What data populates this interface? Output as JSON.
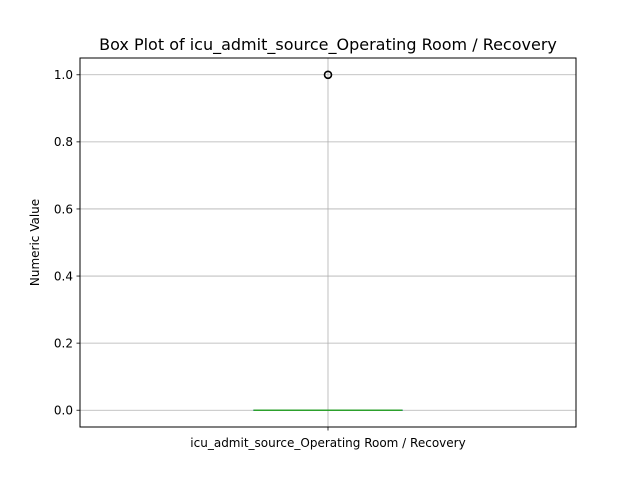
{
  "chart_data": {
    "type": "box",
    "title": "Box Plot of icu_admit_source_Operating Room / Recovery",
    "ylabel": "Numeric Value",
    "xlabel": "",
    "categories": [
      "icu_admit_source_Operating Room / Recovery"
    ],
    "ylim": [
      -0.05,
      1.05
    ],
    "yticks": [
      0.0,
      0.2,
      0.4,
      0.6,
      0.8,
      1.0
    ],
    "ytick_labels": [
      "0.0",
      "0.2",
      "0.4",
      "0.6",
      "0.8",
      "1.0"
    ],
    "grid": true,
    "boxes": [
      {
        "name": "icu_admit_source_Operating Room / Recovery",
        "whisker_low": 0.0,
        "q1": 0.0,
        "median": 0.0,
        "q3": 0.0,
        "whisker_high": 0.0,
        "outliers": [
          1.0
        ]
      }
    ],
    "colors": {
      "box": "#1f77b4",
      "median": "#2ca02c",
      "whisker": "#000000",
      "grid": "#b0b0b0",
      "outlier_edge": "#000000"
    }
  }
}
